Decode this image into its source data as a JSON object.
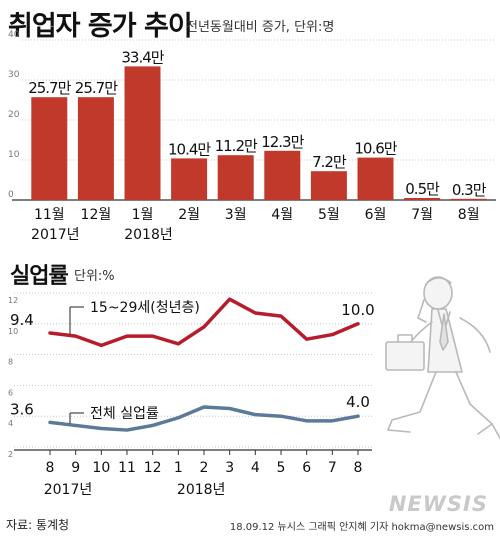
{
  "title": {
    "main": "취업자 증가 추이",
    "sub": "전년동월대비 증가, 단위:명"
  },
  "section2": {
    "title": "실업률",
    "unit": "단위:%"
  },
  "footer": {
    "source": "자료: 통계청",
    "credit": "18.09.12 뉴시스 그래픽 안지혜 기자 hokma@newsis.com",
    "brand": "NEWSIS"
  },
  "colors": {
    "bar": "#c0392b",
    "youth_line": "#b71c2c",
    "total_line": "#5b7a99",
    "grid": "#bdbdbd"
  },
  "chart_data": [
    {
      "type": "bar",
      "title": "취업자 증가 추이",
      "subtitle": "전년동월대비 증가, 단위:명",
      "categories": [
        "11월",
        "12월",
        "1월",
        "2월",
        "3월",
        "4월",
        "5월",
        "6월",
        "7월",
        "8월"
      ],
      "year_labels": [
        {
          "label": "2017년",
          "start_index": 0
        },
        {
          "label": "2018년",
          "start_index": 2
        }
      ],
      "values": [
        25.7,
        25.7,
        33.4,
        10.4,
        11.2,
        12.3,
        7.2,
        10.6,
        0.5,
        0.3
      ],
      "value_labels": [
        "25.7만",
        "25.7만",
        "33.4만",
        "10.4만",
        "11.2만",
        "12.3만",
        "7.2만",
        "10.6만",
        "0.5만",
        "0.3만"
      ],
      "yticks": [
        0,
        10,
        20,
        30,
        40
      ],
      "ylim": [
        0,
        40
      ],
      "grid": true
    },
    {
      "type": "line",
      "title": "실업률",
      "subtitle": "단위:%",
      "categories": [
        "8",
        "9",
        "10",
        "11",
        "12",
        "1",
        "2",
        "3",
        "4",
        "5",
        "6",
        "7",
        "8"
      ],
      "year_labels": [
        {
          "label": "2017년",
          "start_index": 0
        },
        {
          "label": "2018년",
          "start_index": 5
        }
      ],
      "series": [
        {
          "name": "15~29세(청년층)",
          "values": [
            9.4,
            9.2,
            8.6,
            9.2,
            9.2,
            8.7,
            9.8,
            11.6,
            10.7,
            10.5,
            9.0,
            9.3,
            10.0
          ],
          "start_label": "9.4",
          "end_label": "10.0"
        },
        {
          "name": "전체 실업률",
          "values": [
            3.6,
            3.4,
            3.2,
            3.1,
            3.4,
            3.9,
            4.6,
            4.5,
            4.1,
            4.0,
            3.7,
            3.7,
            4.0
          ],
          "start_label": "3.6",
          "end_label": "4.0"
        }
      ],
      "yticks": [
        2,
        4,
        6,
        8,
        10,
        12
      ],
      "ylim": [
        2,
        12
      ],
      "grid": true
    }
  ]
}
